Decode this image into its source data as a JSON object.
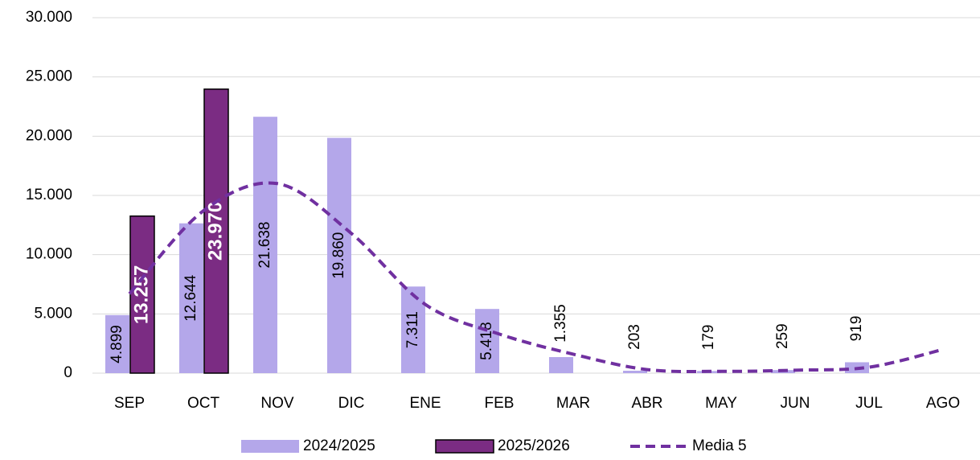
{
  "chart_data": {
    "type": "bar",
    "categories": [
      "SEP",
      "OCT",
      "NOV",
      "DIC",
      "ENE",
      "FEB",
      "MAR",
      "ABR",
      "MAY",
      "JUN",
      "JUL",
      "AGO"
    ],
    "series": [
      {
        "name": "2024/2025",
        "type": "bar",
        "color": "#b4a7ea",
        "values": [
          4899,
          12644,
          21638,
          19860,
          7311,
          5418,
          1355,
          203,
          179,
          259,
          919,
          null
        ],
        "value_labels": [
          "4.899",
          "12.644",
          "21.638",
          "19.860",
          "7.311",
          "5.418",
          "1.355",
          "203",
          "179",
          "259",
          "919",
          null
        ]
      },
      {
        "name": "2025/2026",
        "type": "bar",
        "color": "#7b2c83",
        "values": [
          13257,
          23970,
          null,
          null,
          null,
          null,
          null,
          null,
          null,
          null,
          null,
          null
        ],
        "value_labels": [
          "13.257",
          "23.970",
          null,
          null,
          null,
          null,
          null,
          null,
          null,
          null,
          null,
          null
        ]
      },
      {
        "name": "Media 5",
        "type": "line",
        "color": "#7030a0",
        "values": [
          6700,
          13700,
          16000,
          11800,
          5800,
          3300,
          1600,
          300,
          150,
          250,
          500,
          2000
        ]
      }
    ],
    "ylim": [
      0,
      30000
    ],
    "yticks": [
      0,
      {
        "value": 5000,
        "label": "5.000"
      },
      {
        "value": 10000,
        "label": "10.000"
      },
      {
        "value": 15000,
        "label": "15.000"
      },
      {
        "value": 20000,
        "label": "20.000"
      },
      {
        "value": 25000,
        "label": "25.000"
      },
      {
        "value": 30000,
        "label": "30.000"
      }
    ],
    "grid": true,
    "legend": "bottom"
  }
}
